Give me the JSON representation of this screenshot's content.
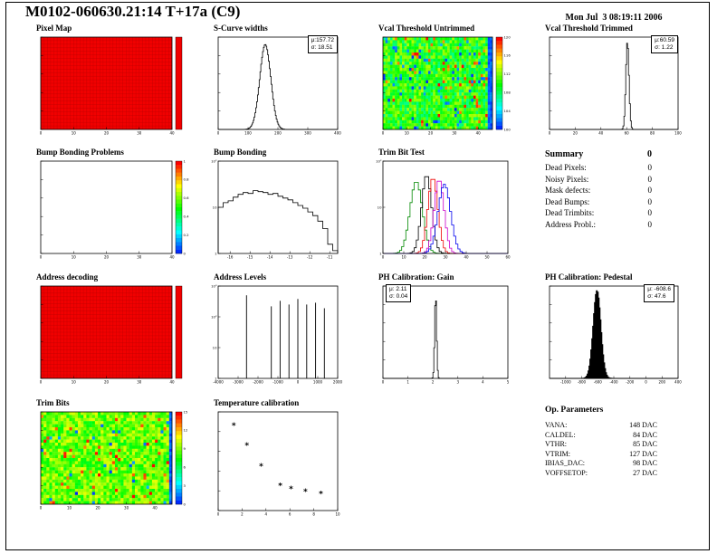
{
  "page": {
    "title": "M0102-060630.21:14 T+17a (C9)",
    "datetime": "Mon Jul  3 08:19:11 2006"
  },
  "summary": {
    "heading": "Summary",
    "heading_value": "0",
    "rows": [
      {
        "label": "Dead Pixels:",
        "value": "0"
      },
      {
        "label": "Noisy Pixels:",
        "value": "0"
      },
      {
        "label": "Mask defects:",
        "value": "0"
      },
      {
        "label": "Dead Bumps:",
        "value": "0"
      },
      {
        "label": "Dead Trimbits:",
        "value": "0"
      },
      {
        "label": "Address Probl.:",
        "value": "0"
      }
    ]
  },
  "op_parameters": {
    "heading": "Op. Parameters",
    "rows": [
      {
        "label": "VANA:",
        "value": "148 DAC"
      },
      {
        "label": "CALDEL:",
        "value": "84 DAC"
      },
      {
        "label": "VTHR:",
        "value": "85 DAC"
      },
      {
        "label": "VTRIM:",
        "value": "127 DAC"
      },
      {
        "label": "IBIAS_DAC:",
        "value": "98 DAC"
      },
      {
        "label": "VOFFSETOP:",
        "value": "27 DAC"
      }
    ]
  },
  "colors": {
    "hot_red": "#f10000",
    "grid_red": "#bb0000",
    "black": "#000000"
  },
  "chart_data": [
    {
      "id": "pixel-map",
      "title": "Pixel Map",
      "type": "heatmap",
      "style": "solid",
      "fill": "#f10000",
      "grid_color": "#bb0000",
      "cols": 40,
      "rows": 26,
      "x_range": [
        0,
        40
      ],
      "x_ticks": [
        0,
        10,
        20,
        30,
        40
      ],
      "colorbar": {
        "solid": "#f10000",
        "ticks": []
      }
    },
    {
      "id": "scurve-widths",
      "title": "S-Curve widths",
      "type": "gauss_hist",
      "mu": 157.72,
      "sigma": 18.51,
      "peak": 0.92,
      "x_range": [
        0,
        400
      ],
      "x_ticks": [
        0,
        100,
        200,
        300,
        400
      ],
      "stats": {
        "mu": "μ:157.72",
        "sigma": "σ: 18.51"
      }
    },
    {
      "id": "vcal-threshold-untrimmed",
      "title": "Vcal Threshold Untrimmed",
      "type": "heatmap",
      "style": "noise",
      "cols": 46,
      "rows": 30,
      "noise": {
        "mean": 0.52,
        "spread": 0.16,
        "low_p": 0.05,
        "high_p": 0.04,
        "edge_cols": 2,
        "seed": 7
      },
      "x_range": [
        0,
        46
      ],
      "x_ticks": [
        0,
        10,
        20,
        30,
        40
      ],
      "colorbar": {
        "ticks": [
          "120",
          "116",
          "112",
          "108",
          "104",
          "100"
        ]
      }
    },
    {
      "id": "vcal-threshold-trimmed",
      "title": "Vcal Threshold Trimmed",
      "type": "gauss_hist",
      "mu": 60.59,
      "sigma": 1.22,
      "peak": 0.95,
      "x_range": [
        0,
        100
      ],
      "x_ticks": [
        0,
        20,
        40,
        60,
        80,
        100
      ],
      "stats": {
        "mu": "μ:60.59",
        "sigma": "σ: 1.22"
      }
    },
    {
      "id": "bump-bonding-problems",
      "title": "Bump Bonding Problems",
      "type": "heatmap",
      "style": "empty",
      "cols": 40,
      "rows": 26,
      "x_range": [
        0,
        40
      ],
      "x_ticks": [
        0,
        10,
        20,
        30,
        40
      ],
      "colorbar": {
        "ticks": [
          "1",
          "0.8",
          "0.6",
          "0.4",
          "0.2",
          "0"
        ]
      }
    },
    {
      "id": "bump-bonding",
      "title": "Bump Bonding",
      "type": "steps",
      "x_range": [
        -16.6,
        -10.6
      ],
      "x_ticks": [
        -16,
        -15,
        -14,
        -13,
        -12,
        -11
      ],
      "y_tick_labels": [
        "10²",
        "10",
        "1"
      ],
      "values": [
        0.5,
        0.55,
        0.57,
        0.61,
        0.64,
        0.66,
        0.65,
        0.68,
        0.67,
        0.66,
        0.64,
        0.65,
        0.62,
        0.6,
        0.58,
        0.55,
        0.52,
        0.49,
        0.45,
        0.41,
        0.35,
        0.27,
        0.1,
        0.03
      ]
    },
    {
      "id": "trim-bit-test",
      "title": "Trim Bit Test",
      "type": "multi_gauss",
      "x_range": [
        0,
        60
      ],
      "x_ticks": [
        0,
        10,
        20,
        30,
        40,
        50,
        60
      ],
      "y_tick_labels": [
        "10²",
        "10",
        "1"
      ],
      "series": [
        {
          "name": "trim-bit-14",
          "color": "#008800",
          "mu": 16,
          "sigma": 3.0,
          "peak": 0.78
        },
        {
          "name": "trim-bit-0",
          "color": "#000000",
          "mu": 21,
          "sigma": 2.4,
          "peak": 0.85
        },
        {
          "name": "trim-bit-7",
          "color": "#ee0000",
          "mu": 24,
          "sigma": 2.4,
          "peak": 0.82
        },
        {
          "name": "trim-bit-11",
          "color": "#cc00cc",
          "mu": 27,
          "sigma": 2.4,
          "peak": 0.8
        },
        {
          "name": "trim-bit-3",
          "color": "#0000ee",
          "mu": 29.5,
          "sigma": 3.0,
          "peak": 0.75
        }
      ]
    },
    {
      "id": "address-decoding",
      "title": "Address decoding",
      "type": "heatmap",
      "style": "solid",
      "fill": "#f10000",
      "grid_color": "#bb0000",
      "cols": 40,
      "rows": 26,
      "x_range": [
        0,
        40
      ],
      "x_ticks": [
        0,
        10,
        20,
        30,
        40
      ],
      "colorbar": {
        "solid": "#f10000",
        "ticks": []
      }
    },
    {
      "id": "address-levels",
      "title": "Address Levels",
      "type": "spikes",
      "x_range": [
        -4000,
        2000
      ],
      "x_ticks": [
        -4000,
        -3000,
        -2000,
        -1000,
        0,
        1000,
        2000
      ],
      "y_tick_labels": [
        "10³",
        "10²",
        "10",
        "1"
      ],
      "spikes": [
        {
          "x": -2578,
          "h": 0.9
        },
        {
          "x": -1333,
          "h": 0.78
        },
        {
          "x": -889,
          "h": 0.84
        },
        {
          "x": -444,
          "h": 0.8
        },
        {
          "x": 0,
          "h": 0.86
        },
        {
          "x": 444,
          "h": 0.8
        },
        {
          "x": 889,
          "h": 0.82
        },
        {
          "x": 1333,
          "h": 0.76
        }
      ]
    },
    {
      "id": "ph-calibration-gain",
      "title": "PH Calibration: Gain",
      "type": "gauss_hist",
      "mu": 2.11,
      "sigma": 0.04,
      "peak": 0.9,
      "x_range": [
        0,
        5
      ],
      "x_ticks": [
        0,
        1,
        2,
        3,
        4,
        5
      ],
      "stats": {
        "mu": "μ: 2.11",
        "sigma": "σ: 0.04"
      }
    },
    {
      "id": "ph-calibration-pedestal",
      "title": "PH Calibration: Pedestal",
      "type": "gauss_fill",
      "mu": -608.6,
      "sigma": 47.6,
      "peak": 0.95,
      "color": "#000000",
      "x_range": [
        -1200,
        400
      ],
      "x_ticks": [
        -1000,
        -800,
        -600,
        -400,
        -200,
        0,
        200,
        400
      ],
      "stats": {
        "mu": "μ: -608.6",
        "sigma": "σ: 47.6"
      }
    },
    {
      "id": "trim-bits",
      "title": "Trim Bits",
      "type": "heatmap",
      "style": "noise",
      "cols": 46,
      "rows": 30,
      "noise": {
        "mean": 0.6,
        "spread": 0.13,
        "low_p": 0.02,
        "high_p": 0.03,
        "edge_cols": 1,
        "seed": 13
      },
      "x_range": [
        0,
        46
      ],
      "x_ticks": [
        0,
        10,
        20,
        30,
        40
      ],
      "colorbar": {
        "ticks": [
          "15",
          "12",
          "9",
          "6",
          "3",
          "0"
        ]
      }
    },
    {
      "id": "temperature-calibration",
      "title": "Temperature calibration",
      "type": "scatter",
      "marker": "*",
      "x_range": [
        0,
        10
      ],
      "y_range": [
        0,
        10
      ],
      "x_ticks": [
        0,
        2,
        4,
        6,
        8,
        10
      ],
      "points": [
        [
          1.3,
          8.6
        ],
        [
          2.4,
          6.6
        ],
        [
          3.6,
          4.5
        ],
        [
          5.2,
          2.5
        ],
        [
          6.1,
          2.2
        ],
        [
          7.3,
          1.9
        ],
        [
          8.6,
          1.7
        ]
      ]
    }
  ]
}
